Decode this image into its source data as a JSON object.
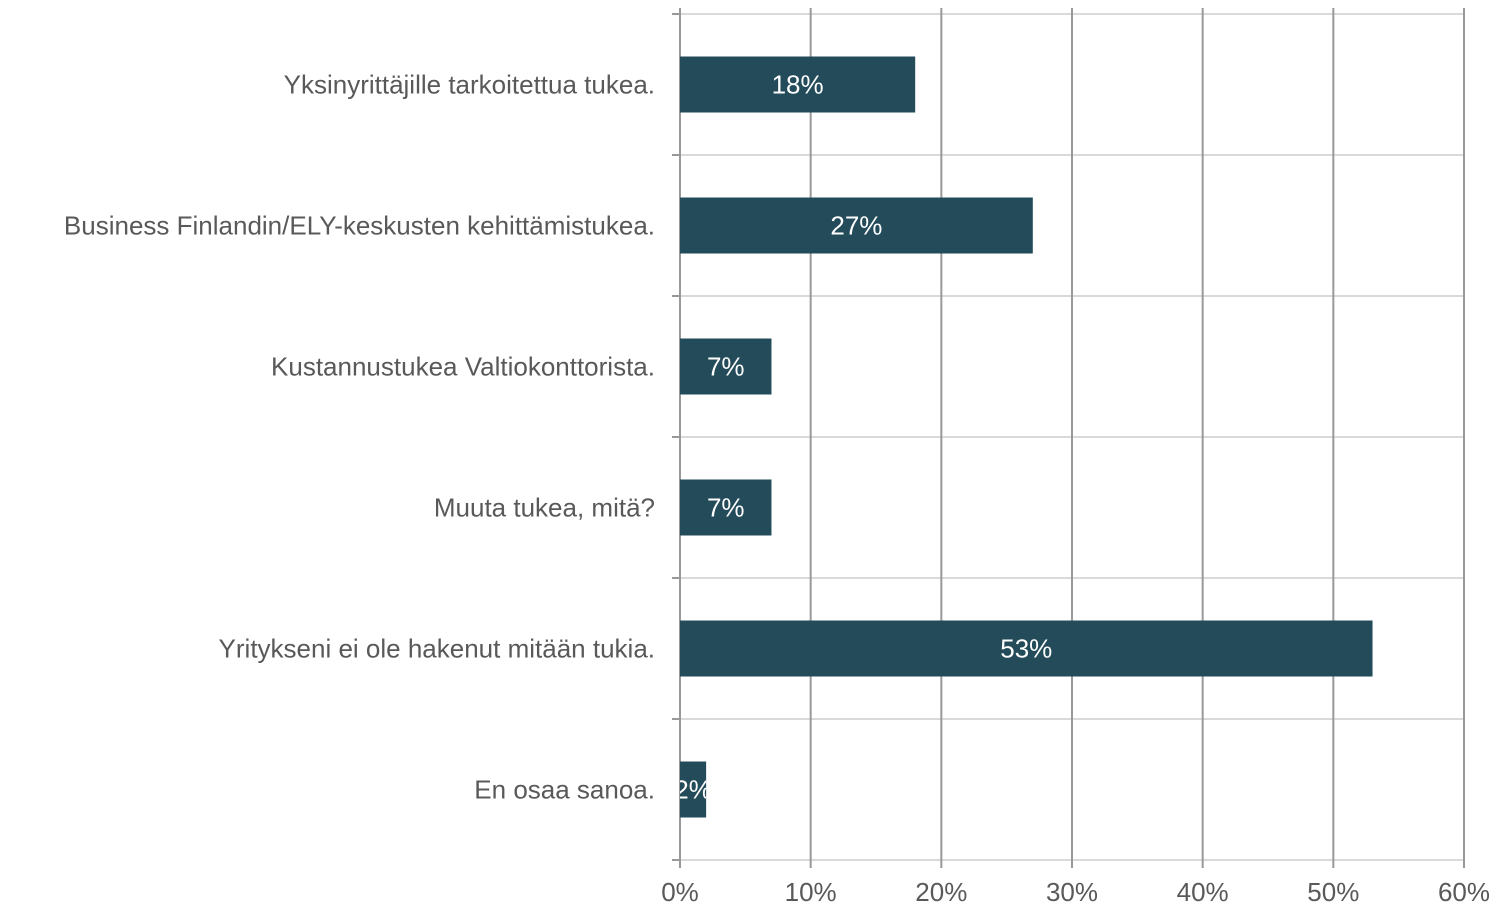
{
  "chart_data": {
    "type": "bar",
    "orientation": "horizontal",
    "categories": [
      "Yksinyrittäjille tarkoitettua tukea.",
      "Business Finlandin/ELY-keskusten kehittämistukea.",
      "Kustannustukea Valtiokonttorista.",
      "Muuta tukea, mitä?",
      "Yritykseni ei ole hakenut mitään tukia.",
      "En osaa sanoa."
    ],
    "values": [
      18,
      27,
      7,
      7,
      53,
      2
    ],
    "value_labels": [
      "18%",
      "27%",
      "7%",
      "7%",
      "53%",
      "2%"
    ],
    "color": "#234b5a",
    "xlim": [
      0,
      60
    ],
    "xticks": [
      {
        "value": 0,
        "label": "0%"
      },
      {
        "value": 10,
        "label": "10%"
      },
      {
        "value": 20,
        "label": "20%"
      },
      {
        "value": 30,
        "label": "30%"
      },
      {
        "value": 40,
        "label": "40%"
      },
      {
        "value": 50,
        "label": "50%"
      },
      {
        "value": 60,
        "label": "60%"
      }
    ],
    "grid": true
  }
}
